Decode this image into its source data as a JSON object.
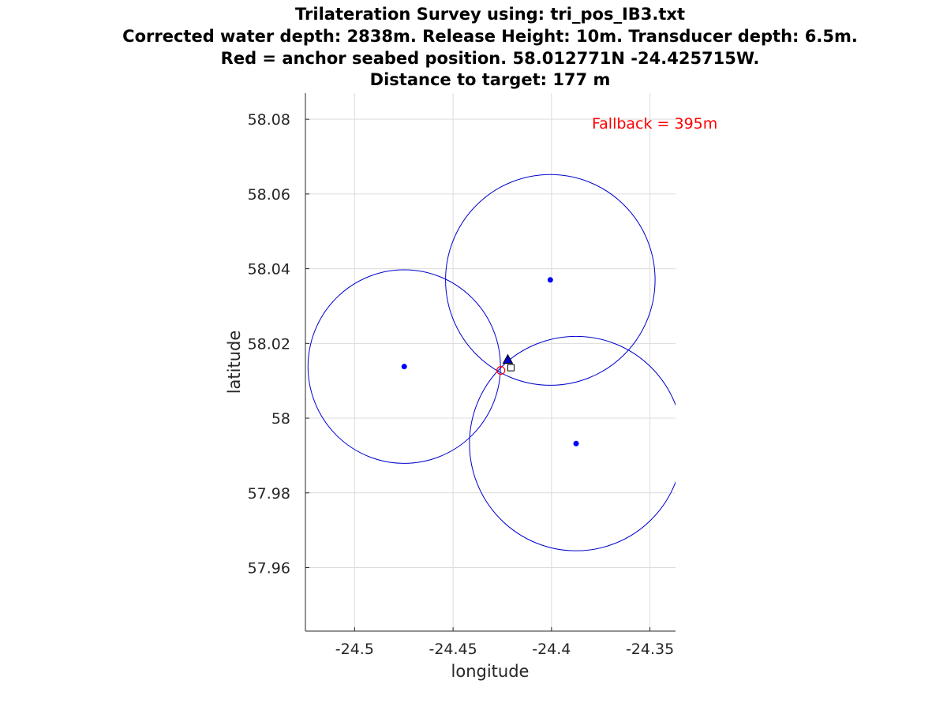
{
  "chart_data": {
    "type": "scatter",
    "title": [
      "Trilateration Survey using: tri_pos_IB3.txt",
      "Corrected water depth: 2838m. Release Height: 10m. Transducer depth: 6.5m.",
      "Red = anchor seabed position. 58.012771N -24.425715W.",
      "Distance to target: 177 m"
    ],
    "xlabel": "longitude",
    "ylabel": "latitude",
    "xlim": [
      -24.525,
      -24.337
    ],
    "ylim": [
      57.943,
      58.087
    ],
    "xticks": [
      -24.5,
      -24.45,
      -24.4,
      -24.35
    ],
    "xtick_labels": [
      "-24.5",
      "-24.45",
      "-24.4",
      "-24.35"
    ],
    "yticks": [
      57.96,
      57.98,
      58,
      58.02,
      58.04,
      58.06,
      58.08
    ],
    "ytick_labels": [
      "57.96",
      "57.98",
      "58",
      "58.02",
      "58.04",
      "58.06",
      "58.08"
    ],
    "grid": true,
    "annotation": {
      "text": "Fallback =   395m",
      "x": -24.3795,
      "y": 58.079,
      "color": "#ff0000"
    },
    "survey_points": [
      {
        "x": -24.4748,
        "y": 58.0138,
        "r_lat": 0.0259
      },
      {
        "x": -24.4006,
        "y": 58.037,
        "r_lat": 0.0282
      },
      {
        "x": -24.3875,
        "y": 57.9932,
        "r_lat": 0.0287
      }
    ],
    "point_color": "#0000ff",
    "circle_color": "#0000cc",
    "target": {
      "x": -24.4222,
      "y": 58.0157,
      "marker": "triangle",
      "color": "#0000cc"
    },
    "anchor": {
      "x": -24.425715,
      "y": 58.012771,
      "marker": "circle",
      "color": "#ff0000"
    },
    "fallback_marker": {
      "x": -24.4206,
      "y": 58.0135,
      "marker": "square",
      "color": "#000000"
    }
  }
}
